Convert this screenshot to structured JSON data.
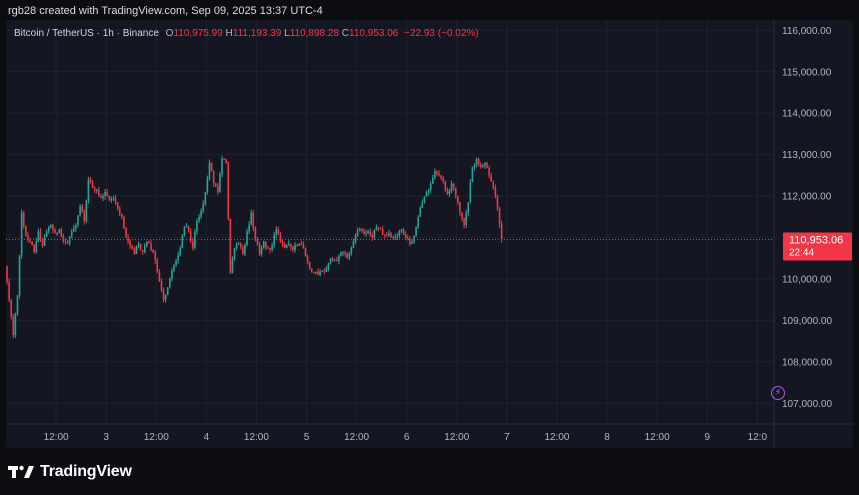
{
  "header": {
    "text": "rgb28 created with TradingView.com, Sep 09, 2025 13:37 UTC-4"
  },
  "legend": {
    "symbol": "Bitcoin / TetherUS · 1h · Binance",
    "o_label": "O",
    "o_value": "110,975.99",
    "h_label": "H",
    "h_value": "111,193.39",
    "l_label": "L",
    "l_value": "110,898.28",
    "c_label": "C",
    "c_value": "110,953.06",
    "change": "−22.93 (−0.02%)"
  },
  "price_tag": {
    "price": "110,953.06",
    "countdown": "22:44"
  },
  "footer": {
    "brand": "TradingView"
  },
  "colors": {
    "up": "#26a69a",
    "down": "#f23645",
    "tag": "#f23645",
    "grid": "#1e2230"
  },
  "chart_data": {
    "type": "candlestick",
    "y_axis": {
      "min": 106500,
      "max": 116250,
      "ticks": [
        116000,
        115000,
        114000,
        113000,
        112000,
        111000,
        110000,
        109000,
        108000,
        107000
      ],
      "tick_labels": [
        "116,000.00",
        "115,000.00",
        "114,000.00",
        "113,000.00",
        "112,000.00",
        "111,000.00",
        "110,000.00",
        "109,000.00",
        "108,000.00",
        "107,000.00"
      ]
    },
    "x_axis": {
      "start_hour": 0,
      "end_hour": 184,
      "ticks": [
        {
          "hour": 12,
          "label": "12:00"
        },
        {
          "hour": 24,
          "label": "3"
        },
        {
          "hour": 36,
          "label": "12:00"
        },
        {
          "hour": 48,
          "label": "4"
        },
        {
          "hour": 60,
          "label": "12:00"
        },
        {
          "hour": 72,
          "label": "5"
        },
        {
          "hour": 84,
          "label": "12:00"
        },
        {
          "hour": 96,
          "label": "6"
        },
        {
          "hour": 108,
          "label": "12:00"
        },
        {
          "hour": 120,
          "label": "7"
        },
        {
          "hour": 132,
          "label": "12:00"
        },
        {
          "hour": 144,
          "label": "8"
        },
        {
          "hour": 156,
          "label": "12:00"
        },
        {
          "hour": 168,
          "label": "9"
        },
        {
          "hour": 180,
          "label": "12:0"
        }
      ]
    },
    "last_price": 110953.06,
    "path": [
      [
        0,
        110300
      ],
      [
        1,
        109500
      ],
      [
        2,
        108650
      ],
      [
        3,
        109600
      ],
      [
        4,
        111600
      ],
      [
        5,
        111050
      ],
      [
        6,
        110900
      ],
      [
        7,
        110650
      ],
      [
        8,
        111150
      ],
      [
        9,
        110800
      ],
      [
        10,
        111150
      ],
      [
        11,
        111300
      ],
      [
        12,
        111100
      ],
      [
        13,
        111200
      ],
      [
        14,
        110900
      ],
      [
        15,
        110850
      ],
      [
        16,
        111150
      ],
      [
        17,
        111300
      ],
      [
        18,
        111750
      ],
      [
        19,
        111400
      ],
      [
        20,
        112400
      ],
      [
        21,
        112200
      ],
      [
        22,
        112150
      ],
      [
        23,
        111950
      ],
      [
        24,
        112100
      ],
      [
        25,
        111900
      ],
      [
        26,
        111950
      ],
      [
        27,
        111700
      ],
      [
        28,
        111500
      ],
      [
        29,
        111000
      ],
      [
        30,
        110800
      ],
      [
        31,
        110600
      ],
      [
        32,
        110850
      ],
      [
        33,
        110650
      ],
      [
        34,
        110900
      ],
      [
        35,
        110700
      ],
      [
        36,
        110450
      ],
      [
        37,
        109950
      ],
      [
        38,
        109500
      ],
      [
        39,
        109800
      ],
      [
        40,
        110200
      ],
      [
        41,
        110450
      ],
      [
        42,
        110750
      ],
      [
        43,
        111250
      ],
      [
        44,
        111150
      ],
      [
        45,
        110750
      ],
      [
        46,
        111400
      ],
      [
        47,
        111650
      ],
      [
        48,
        112100
      ],
      [
        49,
        112800
      ],
      [
        50,
        112300
      ],
      [
        51,
        112100
      ],
      [
        52,
        112900
      ],
      [
        53,
        112800
      ],
      [
        54,
        110150
      ],
      [
        55,
        110750
      ],
      [
        56,
        110850
      ],
      [
        57,
        110600
      ],
      [
        58,
        111150
      ],
      [
        59,
        111600
      ],
      [
        60,
        110950
      ],
      [
        61,
        110600
      ],
      [
        62,
        110900
      ],
      [
        63,
        110750
      ],
      [
        64,
        110800
      ],
      [
        65,
        111200
      ],
      [
        66,
        110900
      ],
      [
        67,
        110750
      ],
      [
        68,
        110850
      ],
      [
        69,
        110700
      ],
      [
        70,
        110800
      ],
      [
        71,
        110850
      ],
      [
        72,
        110550
      ],
      [
        73,
        110250
      ],
      [
        74,
        110150
      ],
      [
        75,
        110100
      ],
      [
        76,
        110200
      ],
      [
        77,
        110250
      ],
      [
        78,
        110500
      ],
      [
        79,
        110450
      ],
      [
        80,
        110550
      ],
      [
        81,
        110650
      ],
      [
        82,
        110500
      ],
      [
        83,
        110750
      ],
      [
        84,
        111050
      ],
      [
        85,
        111200
      ],
      [
        86,
        111100
      ],
      [
        87,
        111150
      ],
      [
        88,
        111000
      ],
      [
        89,
        111250
      ],
      [
        90,
        111200
      ],
      [
        91,
        111050
      ],
      [
        92,
        111100
      ],
      [
        93,
        111000
      ],
      [
        94,
        111050
      ],
      [
        95,
        111200
      ],
      [
        96,
        111000
      ],
      [
        97,
        110850
      ],
      [
        98,
        111050
      ],
      [
        99,
        111500
      ],
      [
        100,
        111850
      ],
      [
        101,
        112100
      ],
      [
        102,
        112300
      ],
      [
        103,
        112600
      ],
      [
        104,
        112500
      ],
      [
        105,
        112350
      ],
      [
        106,
        112050
      ],
      [
        107,
        112300
      ],
      [
        108,
        112000
      ],
      [
        109,
        111600
      ],
      [
        110,
        111300
      ],
      [
        111,
        111850
      ],
      [
        112,
        112700
      ],
      [
        113,
        112900
      ],
      [
        114,
        112700
      ],
      [
        115,
        112800
      ],
      [
        116,
        112500
      ],
      [
        117,
        112200
      ],
      [
        118,
        111700
      ],
      [
        119,
        110953.06
      ]
    ]
  }
}
